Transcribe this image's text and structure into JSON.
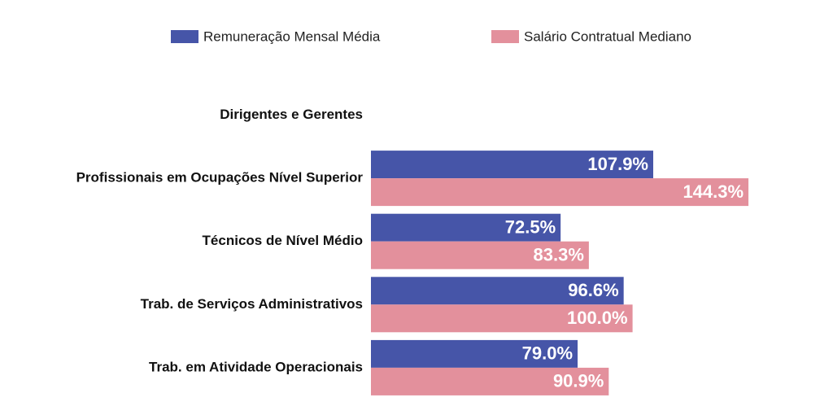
{
  "chart_data": {
    "type": "bar",
    "orientation": "horizontal",
    "categories": [
      "Dirigentes e Gerentes",
      "Profissionais em Ocupações Nível Superior",
      "Técnicos de Nível Médio",
      "Trab. de Serviços Administrativos",
      "Trab. em Atividade Operacionais"
    ],
    "series": [
      {
        "name": "Remuneração Mensal Média",
        "color": "#4655a8",
        "values": [
          null,
          107.9,
          72.5,
          96.6,
          79.0
        ],
        "value_labels": [
          null,
          "107.9%",
          "72.5%",
          "96.6%",
          "79.0%"
        ]
      },
      {
        "name": "Salário Contratual Mediano",
        "color": "#e3909c",
        "values": [
          null,
          144.3,
          83.3,
          100.0,
          90.9
        ],
        "value_labels": [
          null,
          "144.3%",
          "83.3%",
          "100.0%",
          "90.9%"
        ]
      }
    ],
    "legend": "top"
  }
}
